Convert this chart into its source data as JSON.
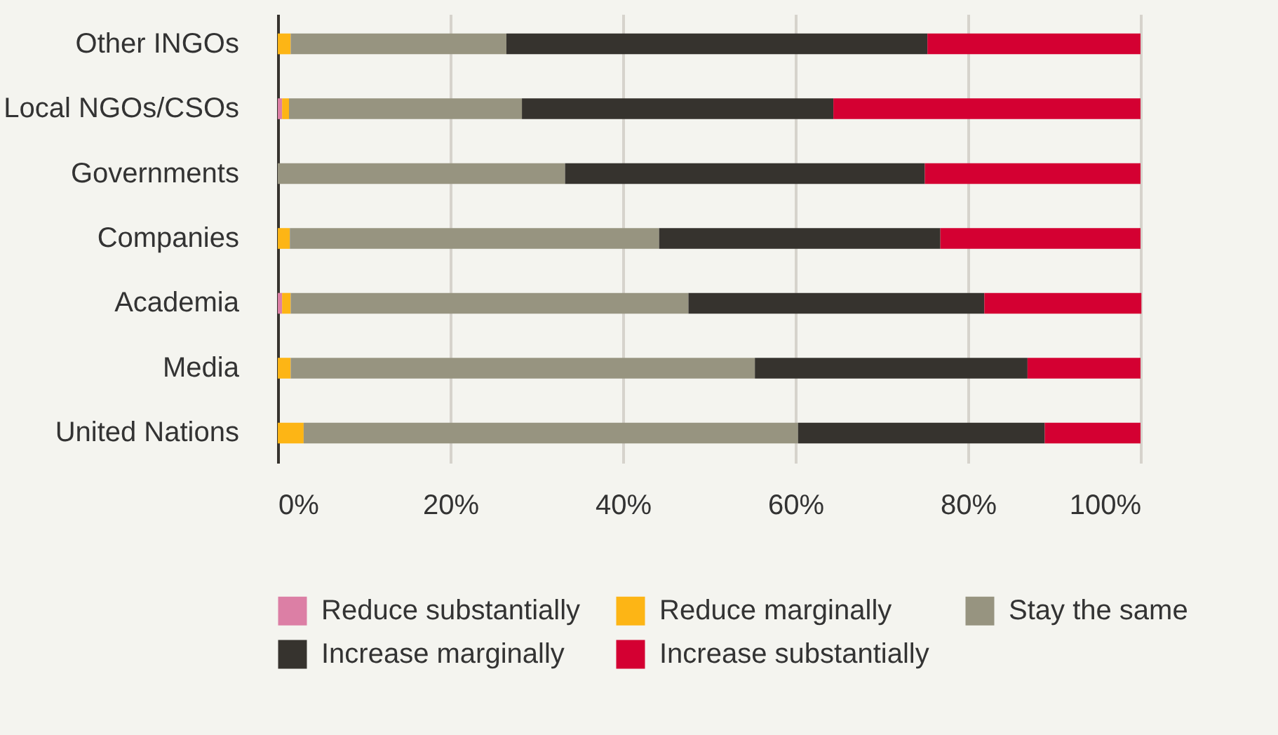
{
  "chart_data": {
    "type": "bar",
    "orientation": "horizontal",
    "stacked": true,
    "categories": [
      "Other INGOs",
      "Local NGOs/CSOs",
      "Governments",
      "Companies",
      "Academia",
      "Media",
      "United Nations"
    ],
    "series": [
      {
        "name": "Reduce substantially",
        "color": "#dc7fa5",
        "values": [
          0,
          0.5,
          0,
          0,
          0.5,
          0,
          0
        ]
      },
      {
        "name": "Reduce marginally",
        "color": "#fdb515",
        "values": [
          1.5,
          0.8,
          0,
          1.4,
          1.0,
          1.5,
          3.0
        ]
      },
      {
        "name": "Stay the same",
        "color": "#979480",
        "values": [
          25.0,
          27.0,
          33.3,
          42.8,
          46.1,
          53.8,
          57.3
        ]
      },
      {
        "name": "Increase marginally",
        "color": "#36332e",
        "values": [
          48.8,
          36.1,
          41.7,
          32.6,
          34.3,
          31.6,
          28.6
        ]
      },
      {
        "name": "Increase substantially",
        "color": "#d40032",
        "values": [
          24.7,
          35.6,
          25.0,
          23.2,
          18.2,
          13.1,
          11.1
        ]
      }
    ],
    "xlim": [
      0,
      100
    ],
    "xticks": [
      {
        "value": 0,
        "label": "0%"
      },
      {
        "value": 20,
        "label": "20%"
      },
      {
        "value": 40,
        "label": "40%"
      },
      {
        "value": 60,
        "label": "60%"
      },
      {
        "value": 80,
        "label": "80%"
      },
      {
        "value": 100,
        "label": "100%"
      }
    ],
    "grid": "x",
    "legend": "bottom"
  }
}
